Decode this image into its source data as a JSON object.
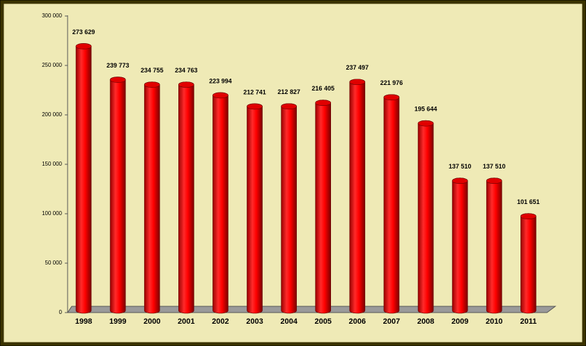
{
  "chart_data": {
    "type": "bar",
    "categories": [
      "1998",
      "1999",
      "2000",
      "2001",
      "2002",
      "2003",
      "2004",
      "2005",
      "2006",
      "2007",
      "2008",
      "2009",
      "2010",
      "2011"
    ],
    "values": [
      273629,
      239773,
      234755,
      234763,
      223994,
      212741,
      212827,
      216405,
      237497,
      221976,
      195644,
      137510,
      137510,
      101651
    ],
    "value_labels": [
      "273 629",
      "239 773",
      "234 755",
      "234 763",
      "223 994",
      "212 741",
      "212 827",
      "216 405",
      "237 497",
      "221 976",
      "195 644",
      "137 510",
      "137 510",
      "101 651"
    ],
    "color": "#ff0000",
    "ylim": [
      0,
      300000
    ],
    "yticks": [
      0,
      {
        "value": 50000,
        "label": "50 000"
      },
      {
        "value": 100000,
        "label": "100 000"
      },
      {
        "value": 150000,
        "label": "150 000"
      },
      {
        "value": 200000,
        "label": "200 000"
      },
      {
        "value": 250000,
        "label": "250 000"
      },
      {
        "value": 300000,
        "label": "300 000"
      }
    ]
  }
}
